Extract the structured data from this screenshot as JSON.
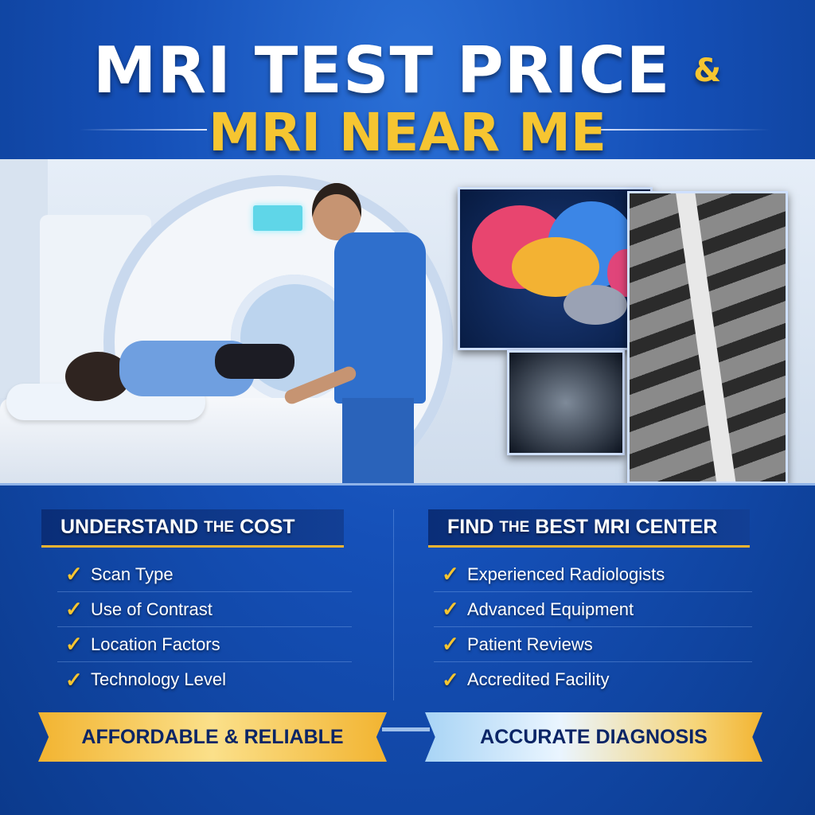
{
  "title": {
    "line1": "MRI TEST PRICE",
    "ampersand": "&",
    "line2": "MRI NEAR ME"
  },
  "left_section": {
    "heading_parts": [
      "UNDERSTAND",
      "THE",
      "COST"
    ],
    "items": [
      "Scan Type",
      "Use of Contrast",
      "Location Factors",
      "Technology Level"
    ]
  },
  "right_section": {
    "heading_parts": [
      "FIND",
      "THE",
      "BEST MRI CENTER"
    ],
    "items": [
      "Experienced Radiologists",
      "Advanced Equipment",
      "Patient Reviews",
      "Accredited Facility"
    ]
  },
  "ribbons": {
    "left": "AFFORDABLE & RELIABLE",
    "right": "ACCURATE DIAGNOSIS"
  },
  "check_icon": "✓",
  "colors": {
    "accent_yellow": "#f6c531",
    "background_blue": "#1550b8",
    "header_navy": "#0a2e78"
  }
}
